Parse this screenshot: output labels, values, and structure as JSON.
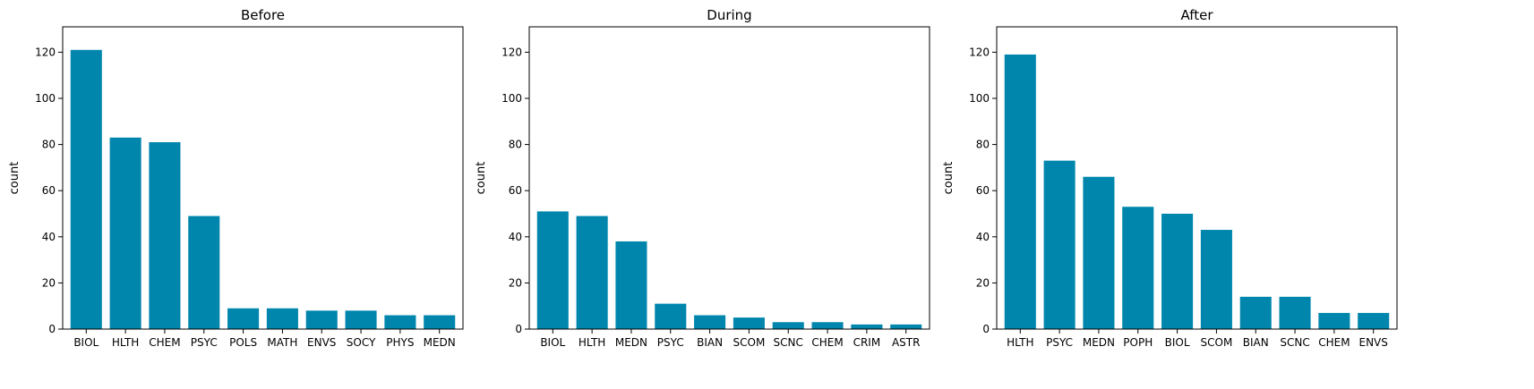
{
  "colors": {
    "bar": "#0086AD"
  },
  "chart_data": [
    {
      "type": "bar",
      "title": "Before",
      "xlabel": "",
      "ylabel": "count",
      "ylim": [
        0,
        131
      ],
      "yticks": [
        0,
        20,
        40,
        60,
        80,
        100,
        120
      ],
      "categories": [
        "BIOL",
        "HLTH",
        "CHEM",
        "PSYC",
        "POLS",
        "MATH",
        "ENVS",
        "SOCY",
        "PHYS",
        "MEDN"
      ],
      "values": [
        121,
        83,
        81,
        49,
        9,
        9,
        8,
        8,
        6,
        6
      ]
    },
    {
      "type": "bar",
      "title": "During",
      "xlabel": "",
      "ylabel": "count",
      "ylim": [
        0,
        131
      ],
      "yticks": [
        0,
        20,
        40,
        60,
        80,
        100,
        120
      ],
      "categories": [
        "BIOL",
        "HLTH",
        "MEDN",
        "PSYC",
        "BIAN",
        "SCOM",
        "SCNC",
        "CHEM",
        "CRIM",
        "ASTR"
      ],
      "values": [
        51,
        49,
        38,
        11,
        6,
        5,
        3,
        3,
        2,
        2
      ]
    },
    {
      "type": "bar",
      "title": "After",
      "xlabel": "",
      "ylabel": "count",
      "ylim": [
        0,
        131
      ],
      "yticks": [
        0,
        20,
        40,
        60,
        80,
        100,
        120
      ],
      "categories": [
        "HLTH",
        "PSYC",
        "MEDN",
        "POPH",
        "BIOL",
        "SCOM",
        "BIAN",
        "SCNC",
        "CHEM",
        "ENVS"
      ],
      "values": [
        119,
        73,
        66,
        53,
        50,
        43,
        14,
        14,
        7,
        7
      ]
    }
  ]
}
